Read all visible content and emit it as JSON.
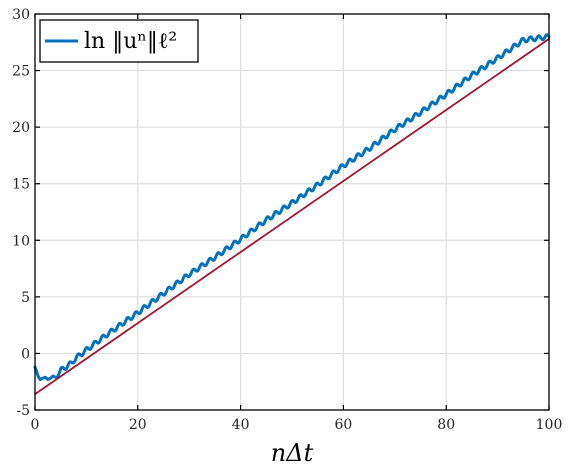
{
  "chart_data": {
    "type": "line",
    "title": "",
    "xlabel": "nΔt",
    "ylabel": "",
    "xlim": [
      0,
      100
    ],
    "ylim": [
      -5,
      30
    ],
    "xticks": [
      0,
      20,
      40,
      60,
      80,
      100
    ],
    "yticks": [
      -5,
      0,
      5,
      10,
      15,
      20,
      25,
      30
    ],
    "grid": true,
    "legend_position": "top-left",
    "legend": [
      "ln ‖uⁿ‖ℓ²"
    ],
    "series": [
      {
        "name": "ln ‖uⁿ‖ℓ²",
        "color": "#0072BD",
        "x": [
          0,
          0.3,
          0.6,
          1,
          1.5,
          2,
          2.5,
          3,
          3.5,
          4,
          5,
          6,
          7,
          8,
          10,
          12,
          15,
          20,
          25,
          30,
          35,
          40,
          45,
          50,
          55,
          60,
          65,
          70,
          75,
          80,
          85,
          90,
          95,
          100
        ],
        "values": [
          -1.2,
          -1.6,
          -2.0,
          -2.3,
          -2.2,
          -2.1,
          -2.3,
          -2.2,
          -2.0,
          -2.1,
          -1.5,
          -1.2,
          -0.9,
          -0.4,
          0.3,
          1.0,
          2.0,
          3.6,
          5.3,
          7.0,
          8.5,
          10.1,
          11.8,
          13.3,
          14.9,
          16.6,
          18.1,
          19.8,
          21.3,
          22.9,
          24.6,
          26.1,
          27.7,
          28.0
        ],
        "oscillation_period": 1.6,
        "oscillation_amplitude": 0.2
      },
      {
        "name": "",
        "color": "#A2142F",
        "x": [
          0,
          100
        ],
        "values": [
          -3.6,
          27.8
        ]
      }
    ]
  }
}
